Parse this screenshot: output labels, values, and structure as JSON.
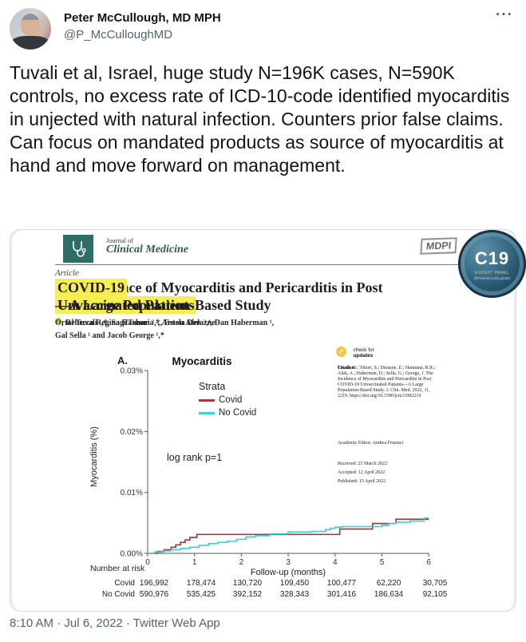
{
  "header": {
    "name": "Peter McCullough, MD MPH",
    "handle": "@P_McCulloughMD",
    "more_icon": "···"
  },
  "tweet_text": "Tuvali et al, Israel, huge study N=196K cases, N=590K controls, no excess rate of ICD-10-code identified myocarditis in unjected with natural infection. Counters prior false claims.  Can focus on mandated products as source of myocarditis at hand and move forward on management.",
  "footer": {
    "timestamp": "8:10 AM · Jul 6, 2022 · Twitter Web App"
  },
  "paper": {
    "journal_prefix": "Journal of",
    "journal_name": "Clinical Medicine",
    "publisher_logo": "MDPI",
    "article_label": "Article",
    "title": {
      "pre": "The Incidence of Myocarditis and Pericarditis in Post ",
      "highlight1": "COVID-19",
      "highlight2": "Unvaccinated Patients",
      "post": "—A Large Population-Based Study"
    },
    "authors_line1a": "Ortal Tuvali ¹,†, Sagi Tshori ²,†, Estela Derazne ³",
    "authors_line1b": ", Rebecca Regina Hannuna ², Arnon Afek ³,⁴, Dan Haberman ¹,",
    "authors_line2": "Gal Sella ¹ and Jacob George ¹,*",
    "check_updates": {
      "icon": "✓",
      "line1": "check for",
      "line2": "updates"
    },
    "citation_label": "Citation:",
    "citation_body": "Tuvali, O.; Tshori, S.; Derazne, E.; Hannuna, R.R.; Afek, A.; Haberman, D.; Sella, G.; George, J. The Incidence of Myocarditis and Pericarditis in Post COVID-19 Unvaccinated Patients—A Large Population-Based Study. J. Clin. Med. 2022, 11, 2219. https://doi.org/10.3390/jcm11082219",
    "academic_editor": "Academic Editor: Andrea Frustaci",
    "received": "Received: 25 March 2022",
    "accepted": "Accepted: 12 April 2022",
    "published": "Published: 15 April 2022",
    "badge": {
      "top": "C19",
      "mid": "EXPERT PANEL",
      "bottom": "@PeterMcCulloughMD"
    },
    "colors": {
      "journal_teal": "#2f6e68",
      "highlight_yellow": "#f7ec52",
      "badge_yellow": "#ecc94b"
    }
  },
  "chart_data": {
    "type": "line",
    "panel_label": "A.",
    "title": "Myocarditis",
    "xlabel": "Follow-up (months)",
    "ylabel": "Myocarditis (%)",
    "annotation": "log rank p=1",
    "legend_title": "Strata",
    "legend_position": "upper-center",
    "grid": false,
    "xlim": [
      0,
      6
    ],
    "ylim": [
      0,
      0.03
    ],
    "xticks": [
      0,
      1,
      2,
      3,
      4,
      5,
      6
    ],
    "yticks": [
      "0.00%",
      "0.01%",
      "0.02%",
      "0.03%"
    ],
    "series": [
      {
        "name": "Covid",
        "color": "#a33b3b",
        "steps": [
          [
            0,
            0
          ],
          [
            0.2,
            0.0003
          ],
          [
            0.35,
            0.0006
          ],
          [
            0.5,
            0.001
          ],
          [
            0.6,
            0.0014
          ],
          [
            0.7,
            0.0018
          ],
          [
            0.8,
            0.0022
          ],
          [
            0.9,
            0.0026
          ],
          [
            1.05,
            0.0031
          ],
          [
            4.1,
            0.004
          ],
          [
            4.8,
            0.0049
          ],
          [
            5.3,
            0.0056
          ],
          [
            6,
            0.0056
          ]
        ]
      },
      {
        "name": "No Covid",
        "color": "#3ed0d8",
        "steps": [
          [
            0,
            0
          ],
          [
            0.15,
            0.0002
          ],
          [
            0.3,
            0.0004
          ],
          [
            0.5,
            0.0006
          ],
          [
            0.7,
            0.0008
          ],
          [
            0.9,
            0.001
          ],
          [
            1.1,
            0.0013
          ],
          [
            1.3,
            0.0016
          ],
          [
            1.5,
            0.0018
          ],
          [
            1.7,
            0.002
          ],
          [
            1.9,
            0.0023
          ],
          [
            2.1,
            0.0027
          ],
          [
            2.3,
            0.0029
          ],
          [
            2.6,
            0.0032
          ],
          [
            3.0,
            0.0035
          ],
          [
            3.5,
            0.0036
          ],
          [
            3.8,
            0.0039
          ],
          [
            3.9,
            0.0041
          ],
          [
            4.0,
            0.0043
          ],
          [
            4.15,
            0.0044
          ],
          [
            5.0,
            0.0046
          ],
          [
            5.15,
            0.0049
          ],
          [
            5.3,
            0.0051
          ],
          [
            5.6,
            0.0053
          ],
          [
            5.9,
            0.0058
          ],
          [
            6,
            0.0058
          ]
        ]
      }
    ],
    "number_at_risk": {
      "label": "Number at risk",
      "rows": [
        {
          "name": "Covid",
          "values": [
            "196,992",
            "178,474",
            "130,720",
            "109,450",
            "100,477",
            "62,220",
            "30,705"
          ]
        },
        {
          "name": "No Covid",
          "values": [
            "590,976",
            "535,425",
            "392,152",
            "328,343",
            "301,416",
            "186,634",
            "92,105"
          ]
        }
      ]
    }
  }
}
